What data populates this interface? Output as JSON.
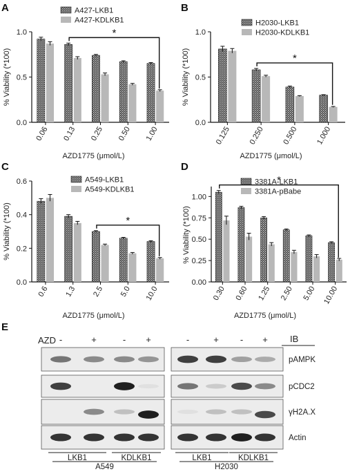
{
  "figure": {
    "panels": [
      "A",
      "B",
      "C",
      "D",
      "E"
    ]
  },
  "chart_data": [
    {
      "panel": "A",
      "type": "bar",
      "categories": [
        "0.06",
        "0.13",
        "0.25",
        "0.50",
        "1.00"
      ],
      "series": [
        {
          "name": "A427-LKB1",
          "values": [
            0.92,
            0.86,
            0.74,
            0.67,
            0.65
          ],
          "errors": [
            0.02,
            0.015,
            0.01,
            0.01,
            0.01
          ]
        },
        {
          "name": "A427-KDLKB1",
          "values": [
            0.87,
            0.71,
            0.53,
            0.42,
            0.35
          ],
          "errors": [
            0.02,
            0.015,
            0.015,
            0.01,
            0.01
          ]
        }
      ],
      "xlabel": "AZD1775 (μmol/L)",
      "ylabel": "% Viability (*100)",
      "ylim": [
        0,
        1.0
      ],
      "yticks": [
        "0.0",
        "0.5",
        "1.0"
      ],
      "significance": {
        "from": 1,
        "to": 4,
        "label": "*"
      },
      "legend": "top-right"
    },
    {
      "panel": "B",
      "type": "bar",
      "categories": [
        "0.125",
        "0.250",
        "0.500",
        "1.000"
      ],
      "series": [
        {
          "name": "H2030-LKB1",
          "values": [
            0.81,
            0.58,
            0.39,
            0.3
          ],
          "errors": [
            0.03,
            0.015,
            0.01,
            0.005
          ]
        },
        {
          "name": "H2030-KDLKB1",
          "values": [
            0.79,
            0.51,
            0.29,
            0.17
          ],
          "errors": [
            0.025,
            0.01,
            0.005,
            0.005
          ]
        }
      ],
      "xlabel": "AZD1775 (μmol/L)",
      "ylabel": "% Viability (*100)",
      "ylim": [
        0,
        1.0
      ],
      "yticks": [
        "0.0",
        "0.5",
        "1.0"
      ],
      "significance": {
        "from": 1,
        "to": 3,
        "label": "*"
      },
      "legend": "top-right"
    },
    {
      "panel": "C",
      "type": "bar",
      "categories": [
        "0.6",
        "1.3",
        "2.5",
        "5.0",
        "10.0"
      ],
      "series": [
        {
          "name": "A549-LKB1",
          "values": [
            0.48,
            0.39,
            0.3,
            0.26,
            0.24
          ],
          "errors": [
            0.015,
            0.01,
            0.005,
            0.005,
            0.005
          ]
        },
        {
          "name": "A549-KDLKB1",
          "values": [
            0.5,
            0.35,
            0.22,
            0.17,
            0.14
          ],
          "errors": [
            0.02,
            0.01,
            0.005,
            0.005,
            0.005
          ]
        }
      ],
      "xlabel": "AZD1775 (μmol/L)",
      "ylabel": "% Viability (*100)",
      "ylim": [
        0,
        0.6
      ],
      "yticks": [
        "0.0",
        "0.2",
        "0.4",
        "0.6"
      ],
      "significance": {
        "from": 2,
        "to": 4,
        "label": "*"
      },
      "legend": "top-right"
    },
    {
      "panel": "D",
      "type": "bar",
      "categories": [
        "0.30",
        "0.60",
        "1.25",
        "2.50",
        "5.00",
        "10.00"
      ],
      "series": [
        {
          "name": "3381A-LKB1",
          "values": [
            1.05,
            0.87,
            0.75,
            0.61,
            0.54,
            0.46
          ],
          "errors": [
            0.02,
            0.015,
            0.015,
            0.01,
            0.01,
            0.01
          ]
        },
        {
          "name": "3381A-pBabe",
          "values": [
            0.72,
            0.53,
            0.44,
            0.35,
            0.3,
            0.26
          ],
          "errors": [
            0.05,
            0.04,
            0.02,
            0.02,
            0.02,
            0.015
          ]
        }
      ],
      "xlabel": "AZD1775 (μmol/L)",
      "ylabel": "% Viability (*100)",
      "ylim": [
        0,
        1.25
      ],
      "yticks": [
        "0.00",
        "0.25",
        "0.50",
        "0.75",
        "1.00"
      ],
      "significance": {
        "from": 0,
        "to": 5,
        "label": "*"
      },
      "legend": "top-right"
    }
  ],
  "western_blot": {
    "panel": "E",
    "treatment_label": "AZD",
    "ib_label": "IB",
    "treatment_signs": [
      "-",
      "+",
      "-",
      "+"
    ],
    "proteins": [
      "pAMPK",
      "pCDC2",
      "γH2A.X",
      "Actin"
    ],
    "groups": [
      "LKB1",
      "KDLKB1"
    ],
    "cell_lines": [
      "A549",
      "H2030"
    ],
    "band_intensity": {
      "A549": [
        [
          0.55,
          0.45,
          0.45,
          0.4
        ],
        [
          0.8,
          0.0,
          0.95,
          0.05
        ],
        [
          0.0,
          0.45,
          0.2,
          0.95
        ],
        [
          0.85,
          0.85,
          0.85,
          0.85
        ]
      ],
      "H2030": [
        [
          0.8,
          0.8,
          0.35,
          0.3
        ],
        [
          0.55,
          0.15,
          0.75,
          0.45
        ],
        [
          0.05,
          0.2,
          0.2,
          0.75
        ],
        [
          0.85,
          0.85,
          0.95,
          0.85
        ]
      ]
    }
  }
}
